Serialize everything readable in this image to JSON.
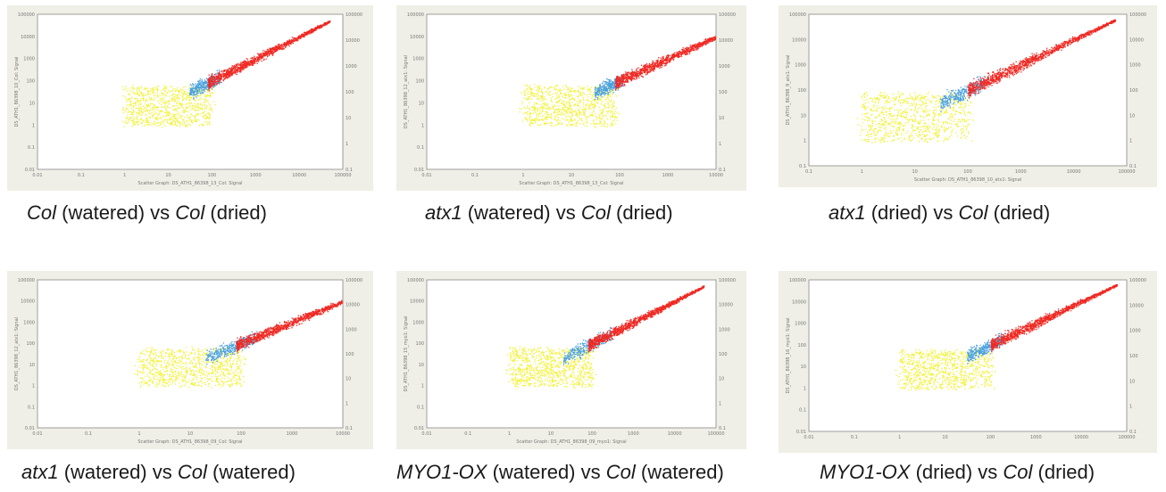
{
  "panels": [
    {
      "caption": [
        {
          "t": "Col",
          "i": true
        },
        {
          "t": " (watered) vs ",
          "i": false
        },
        {
          "t": "Col",
          "i": true
        },
        {
          "t": " (dried)",
          "i": false
        }
      ],
      "xlabel": "Scatter Graph: DS_ATH1_86398_13_Col: Signal",
      "ylabel": "DS_ATH1_86398_10_Col: Signal",
      "x_ticks": [
        "0.01",
        "0.1",
        "1",
        "10",
        "100",
        "1000",
        "10000",
        "100000"
      ],
      "y_ticks": [
        "0.01",
        "0.1",
        "1",
        "10",
        "100",
        "1000",
        "10000",
        "100000"
      ],
      "y2_ticks": [
        "0.1",
        "1",
        "10",
        "100",
        "1000",
        "10000",
        "100000"
      ]
    },
    {
      "caption": [
        {
          "t": "atx1",
          "i": true
        },
        {
          "t": " (watered) vs ",
          "i": false
        },
        {
          "t": "Col",
          "i": true
        },
        {
          "t": " (dried)",
          "i": false
        }
      ],
      "xlabel": "Scatter Graph: DS_ATH1_86398_13_Col: Signal",
      "ylabel": "DS_ATH1_86398_12_atx1: Signal",
      "x_ticks": [
        "0.01",
        "0.1",
        "1",
        "10",
        "100",
        "1000",
        "10000"
      ],
      "y_ticks": [
        "0.01",
        "0.1",
        "1",
        "10",
        "100",
        "1000",
        "10000",
        "100000"
      ],
      "y2_ticks": [
        "0.1",
        "1",
        "10",
        "100",
        "1000",
        "10000",
        "100000"
      ]
    },
    {
      "caption": [
        {
          "t": "atx1",
          "i": true
        },
        {
          "t": " (dried) vs ",
          "i": false
        },
        {
          "t": "Col",
          "i": true
        },
        {
          "t": " (dried)",
          "i": false
        }
      ],
      "xlabel": "Scatter Graph: DS_ATH1_86398_10_atx1: Signal",
      "ylabel": "DS_ATH1_86398_9_atx1: Signal",
      "x_ticks": [
        "0.1",
        "1",
        "10",
        "100",
        "1000",
        "10000",
        "100000"
      ],
      "y_ticks": [
        "0.1",
        "1",
        "10",
        "100",
        "1000",
        "10000",
        "100000"
      ],
      "y2_ticks": [
        "0.1",
        "1",
        "10",
        "100",
        "1000",
        "10000",
        "100000"
      ]
    },
    {
      "caption": [
        {
          "t": "atx1",
          "i": true
        },
        {
          "t": " (watered) vs ",
          "i": false
        },
        {
          "t": "Col",
          "i": true
        },
        {
          "t": " (watered)",
          "i": false
        }
      ],
      "xlabel": "Scatter Graph: DS_ATH1_86398_09_Col: Signal",
      "ylabel": "DS_ATH1_86398_12_atx1: Signal",
      "x_ticks": [
        "0.01",
        "0.1",
        "1",
        "10",
        "100",
        "1000",
        "10000"
      ],
      "y_ticks": [
        "0.01",
        "0.1",
        "1",
        "10",
        "100",
        "1000",
        "10000",
        "100000"
      ],
      "y2_ticks": [
        "0.1",
        "1",
        "10",
        "100",
        "1000",
        "10000",
        "100000"
      ]
    },
    {
      "caption": [
        {
          "t": "MYO1-OX",
          "i": true
        },
        {
          "t": " (watered) vs ",
          "i": false
        },
        {
          "t": "Col",
          "i": true
        },
        {
          "t": " (watered)",
          "i": false
        }
      ],
      "xlabel": "Scatter Graph: DS_ATH1_86398_09_myo1: Signal",
      "ylabel": "DS_ATH1_86398_15_myo1: Signal",
      "x_ticks": [
        "0.01",
        "0.1",
        "1",
        "10",
        "100",
        "1000",
        "10000",
        "100000"
      ],
      "y_ticks": [
        "0.01",
        "0.1",
        "1",
        "10",
        "100",
        "1000",
        "10000",
        "100000"
      ],
      "y2_ticks": [
        "0.1",
        "1",
        "10",
        "100",
        "1000",
        "10000",
        "100000"
      ]
    },
    {
      "caption": [
        {
          "t": "MYO1-OX",
          "i": true
        },
        {
          "t": " (dried) vs ",
          "i": false
        },
        {
          "t": "Col",
          "i": true
        },
        {
          "t": " (dried)",
          "i": false
        }
      ],
      "xlabel": "",
      "ylabel": "DS_ATH1_86398_16_myo1: Signal",
      "x_ticks": [
        "0.01",
        "0.1",
        "1",
        "10",
        "100",
        "1000",
        "10000",
        "100000"
      ],
      "y_ticks": [
        "0.01",
        "0.1",
        "1",
        "10",
        "100",
        "1000",
        "10000",
        "100000"
      ],
      "y2_ticks": [
        "0.1",
        "1",
        "10",
        "100",
        "1000",
        "10000",
        "100000"
      ]
    }
  ],
  "chart_data": [
    {
      "type": "scatter",
      "log_x": true,
      "log_y": true,
      "xlim": [
        0.01,
        100000
      ],
      "ylim": [
        0.01,
        100000
      ],
      "clusters": [
        {
          "color": "#f2f23a",
          "label_color": "yellow",
          "x_range": [
            1,
            100
          ],
          "y_range": [
            1,
            60
          ]
        },
        {
          "color": "#4aa0e0",
          "label_color": "blue",
          "x_range": [
            30,
            150
          ],
          "y_range": [
            20,
            150
          ]
        },
        {
          "color": "#ef2a24",
          "label_color": "red",
          "x_range": [
            80,
            50000
          ],
          "y_range": [
            80,
            50000
          ]
        }
      ],
      "grid": false,
      "legend": "none"
    },
    {
      "type": "scatter",
      "log_x": true,
      "log_y": true,
      "xlim": [
        0.01,
        10000
      ],
      "ylim": [
        0.01,
        100000
      ],
      "clusters": [
        {
          "color": "#f2f23a",
          "label_color": "yellow",
          "x_range": [
            1,
            80
          ],
          "y_range": [
            1,
            60
          ]
        },
        {
          "color": "#4aa0e0",
          "label_color": "blue",
          "x_range": [
            30,
            120
          ],
          "y_range": [
            20,
            120
          ]
        },
        {
          "color": "#ef2a24",
          "label_color": "red",
          "x_range": [
            80,
            40000
          ],
          "y_range": [
            80,
            40000
          ]
        }
      ],
      "grid": false,
      "legend": "none"
    },
    {
      "type": "scatter",
      "log_x": true,
      "log_y": true,
      "xlim": [
        0.1,
        100000
      ],
      "ylim": [
        0.1,
        100000
      ],
      "clusters": [
        {
          "color": "#f2f23a",
          "label_color": "yellow",
          "x_range": [
            1,
            100
          ],
          "y_range": [
            1,
            80
          ]
        },
        {
          "color": "#4aa0e0",
          "label_color": "blue",
          "x_range": [
            30,
            200
          ],
          "y_range": [
            30,
            200
          ]
        },
        {
          "color": "#ef2a24",
          "label_color": "red",
          "x_range": [
            100,
            60000
          ],
          "y_range": [
            100,
            60000
          ]
        }
      ],
      "grid": false,
      "legend": "none"
    },
    {
      "type": "scatter",
      "log_x": true,
      "log_y": true,
      "xlim": [
        0.01,
        10000
      ],
      "ylim": [
        0.01,
        100000
      ],
      "clusters": [
        {
          "color": "#f2f23a",
          "label_color": "yellow",
          "x_range": [
            1,
            100
          ],
          "y_range": [
            1,
            60
          ]
        },
        {
          "color": "#4aa0e0",
          "label_color": "blue",
          "x_range": [
            20,
            200
          ],
          "y_range": [
            20,
            300
          ]
        },
        {
          "color": "#ef2a24",
          "label_color": "red",
          "x_range": [
            80,
            40000
          ],
          "y_range": [
            80,
            40000
          ]
        }
      ],
      "grid": false,
      "legend": "none"
    },
    {
      "type": "scatter",
      "log_x": true,
      "log_y": true,
      "xlim": [
        0.01,
        100000
      ],
      "ylim": [
        0.01,
        100000
      ],
      "clusters": [
        {
          "color": "#f2f23a",
          "label_color": "yellow",
          "x_range": [
            1,
            100
          ],
          "y_range": [
            1,
            60
          ]
        },
        {
          "color": "#4aa0e0",
          "label_color": "blue",
          "x_range": [
            20,
            300
          ],
          "y_range": [
            20,
            400
          ]
        },
        {
          "color": "#ef2a24",
          "label_color": "red",
          "x_range": [
            80,
            50000
          ],
          "y_range": [
            80,
            50000
          ]
        }
      ],
      "grid": false,
      "legend": "none"
    },
    {
      "type": "scatter",
      "log_x": true,
      "log_y": true,
      "xlim": [
        0.01,
        100000
      ],
      "ylim": [
        0.01,
        100000
      ],
      "clusters": [
        {
          "color": "#f2f23a",
          "label_color": "yellow",
          "x_range": [
            1,
            100
          ],
          "y_range": [
            1,
            60
          ]
        },
        {
          "color": "#4aa0e0",
          "label_color": "blue",
          "x_range": [
            30,
            200
          ],
          "y_range": [
            30,
            250
          ]
        },
        {
          "color": "#ef2a24",
          "label_color": "red",
          "x_range": [
            100,
            60000
          ],
          "y_range": [
            100,
            60000
          ]
        }
      ],
      "grid": false,
      "legend": "none"
    }
  ]
}
